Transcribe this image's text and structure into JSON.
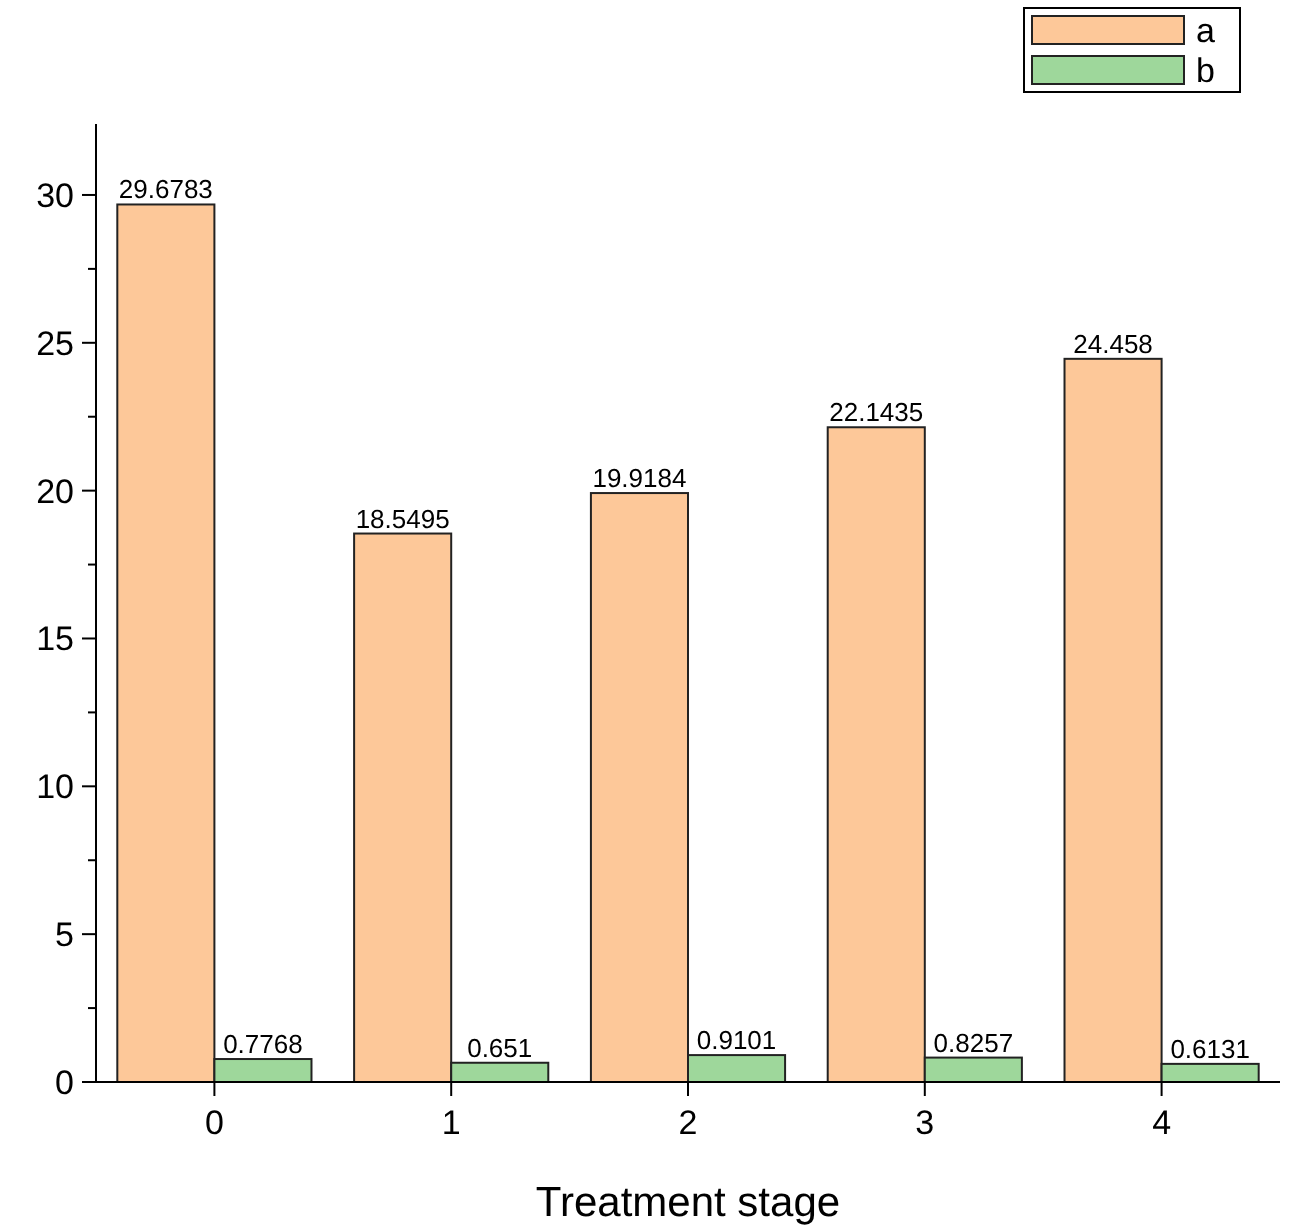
{
  "chart_data": {
    "type": "bar",
    "xlabel": "Treatment stage",
    "categories": [
      "0",
      "1",
      "2",
      "3",
      "4"
    ],
    "series": [
      {
        "name": "a",
        "color": "#fdc899",
        "values": [
          29.6783,
          18.5495,
          19.9184,
          22.1435,
          24.458
        ]
      },
      {
        "name": "b",
        "color": "#9ed79b",
        "values": [
          0.7768,
          0.651,
          0.9101,
          0.8257,
          0.6131
        ]
      }
    ],
    "ylim": [
      0,
      32.4
    ],
    "yticks": [
      0,
      5,
      10,
      15,
      20,
      25,
      30
    ],
    "data_labels": true,
    "legend": "top right"
  }
}
